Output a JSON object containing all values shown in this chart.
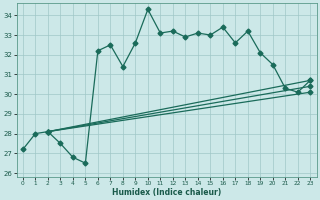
{
  "xlabel": "Humidex (Indice chaleur)",
  "bg_color": "#cce8e8",
  "grid_color": "#a0c8c8",
  "line_color": "#1a6b5a",
  "xlim": [
    -0.5,
    23.5
  ],
  "ylim": [
    25.8,
    34.6
  ],
  "yticks": [
    26,
    27,
    28,
    29,
    30,
    31,
    32,
    33,
    34
  ],
  "xticks": [
    0,
    1,
    2,
    3,
    4,
    5,
    6,
    7,
    8,
    9,
    10,
    11,
    12,
    13,
    14,
    15,
    16,
    17,
    18,
    19,
    20,
    21,
    22,
    23
  ],
  "series1_x": [
    0,
    1,
    2,
    3,
    4,
    5,
    6,
    7,
    8,
    9,
    10,
    11,
    12,
    13,
    14,
    15,
    16,
    17,
    18,
    19,
    20,
    21,
    22,
    23
  ],
  "series1_y": [
    27.2,
    28.0,
    28.1,
    27.5,
    26.8,
    26.5,
    32.2,
    32.5,
    31.4,
    32.6,
    34.3,
    33.1,
    33.2,
    32.9,
    33.1,
    33.0,
    33.4,
    32.6,
    33.2,
    32.1,
    31.5,
    30.3,
    30.1,
    30.7
  ],
  "series2_x": [
    2,
    23
  ],
  "series2_y": [
    28.1,
    30.7
  ],
  "series3_x": [
    2,
    23
  ],
  "series3_y": [
    28.1,
    30.4
  ],
  "series4_x": [
    2,
    23
  ],
  "series4_y": [
    28.1,
    30.1
  ],
  "marker": "D",
  "markersize": 2.5,
  "linewidth": 0.9
}
